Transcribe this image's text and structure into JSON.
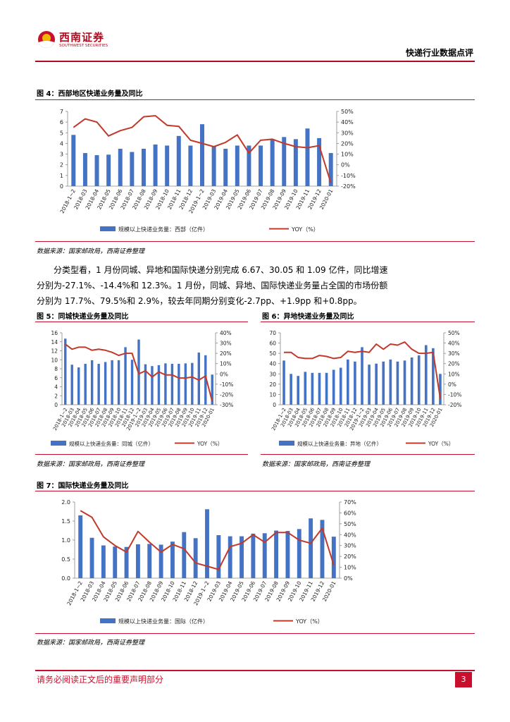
{
  "header": {
    "logo_cn": "西南证券",
    "logo_en": "SOUTHWEST SECURITIES",
    "title": "快递行业数据点评"
  },
  "categories_main": [
    "2018-1~2",
    "2018-03",
    "2018-04",
    "2018-05",
    "2018-06",
    "2018-07",
    "2018-08",
    "2018-09",
    "2018-10",
    "2018-11",
    "2018-12",
    "2019-1~2",
    "2019-03",
    "2019-04",
    "2019-05",
    "2019-06",
    "2019-07",
    "2019-08",
    "2019-09",
    "2019-10",
    "2019-11",
    "2019-12",
    "2020-01"
  ],
  "fig4": {
    "title": "图 4：西部地区快递业务量及同比",
    "source": "数据来源：国家邮政局，西南证券整理"
  },
  "fig5": {
    "title": "图 5：同城快递业务量及同比",
    "source": "数据来源：国家邮政局，西南证券整理"
  },
  "fig6": {
    "title": "图 6：异地快递业务量及同比",
    "source": "数据来源：国家邮政局，西南证券整理"
  },
  "fig7": {
    "title": "图 7：国际快递业务量及同比",
    "source": "数据来源：国家邮政局，西南证券整理"
  },
  "paragraph": {
    "lines": [
      "分类型看，1 月份同城、异地和国际快递分别完成 6.67、30.05 和 1.09 亿件，同比增速",
      "分别为-27.1%、-14.4%和 12.3%。1 月份，同城、异地、国际快递业务量占全国的市场份额",
      "分别为 17.7%、79.5%和 2.9%，较去年同期分别变化-2.7pp、+1.9pp 和+0.8pp。"
    ]
  },
  "footer": {
    "disclaimer": "请务必阅读正文后的重要声明部分",
    "page_number": "3"
  },
  "chart_data": [
    {
      "id": "fig4",
      "type": "bar+line",
      "title": "图 4：西部地区快递业务量及同比",
      "categories": [
        "2018-1~2",
        "2018-03",
        "2018-04",
        "2018-05",
        "2018-06",
        "2018-07",
        "2018-08",
        "2018-09",
        "2018-10",
        "2018-11",
        "2018-12",
        "2019-1~2",
        "2019-03",
        "2019-04",
        "2019-05",
        "2019-06",
        "2019-07",
        "2019-08",
        "2019-09",
        "2019-10",
        "2019-11",
        "2019-12",
        "2020-01"
      ],
      "series": [
        {
          "name": "规模以上快递业务量：西部（亿件）",
          "type": "bar",
          "axis": "left",
          "color": "#4472c4",
          "values": [
            4.8,
            3.1,
            2.9,
            2.95,
            3.5,
            3.2,
            3.5,
            3.9,
            3.8,
            4.7,
            3.8,
            5.8,
            3.7,
            3.5,
            3.8,
            3.8,
            3.8,
            4.4,
            4.6,
            4.4,
            5.4,
            4.5,
            3.1
          ]
        },
        {
          "name": "YOY（%）",
          "type": "line",
          "axis": "right",
          "color": "#c0392b",
          "values": [
            35,
            43,
            40,
            27,
            32,
            35,
            45,
            46,
            37,
            36,
            23,
            20,
            17,
            21,
            28,
            11,
            23,
            24,
            20,
            17,
            16,
            18,
            -17
          ]
        }
      ],
      "ylim_left": [
        0,
        7
      ],
      "yticks_left": [
        0,
        1,
        2,
        3,
        4,
        5,
        6,
        7
      ],
      "ylim_right": [
        -20,
        50
      ],
      "yticks_right": [
        "-20%",
        "-10%",
        "0%",
        "10%",
        "20%",
        "30%",
        "40%",
        "50%"
      ]
    },
    {
      "id": "fig5",
      "type": "bar+line",
      "title": "图 5：同城快递业务量及同比",
      "categories": [
        "2018-1~2",
        "2018-03",
        "2018-04",
        "2018-05",
        "2018-06",
        "2018-07",
        "2018-08",
        "2018-09",
        "2018-10",
        "2018-11",
        "2018-12",
        "2019-1~2",
        "2019-03",
        "2019-04",
        "2019-05",
        "2019-06",
        "2019-07",
        "2019-08",
        "2019-09",
        "2019-10",
        "2019-11",
        "2019-12",
        "2020-01"
      ],
      "series": [
        {
          "name": "规模以上快递业务量：同城（亿件）",
          "type": "bar",
          "axis": "left",
          "color": "#4472c4",
          "values": [
            14.7,
            8.9,
            8.3,
            9.1,
            9.9,
            9.1,
            9.5,
            9.9,
            9.9,
            12.8,
            10.0,
            14.5,
            9.0,
            8.6,
            8.8,
            9.2,
            9.1,
            9.1,
            9.2,
            9.3,
            11.6,
            11.0,
            6.7
          ]
        },
        {
          "name": "YOY（%）",
          "type": "line",
          "axis": "right",
          "color": "#c0392b",
          "values": [
            29,
            24,
            26,
            26,
            23,
            24,
            23,
            21,
            18,
            20,
            20,
            0,
            3,
            -3,
            2,
            -1,
            -1,
            -4,
            -4,
            -3,
            -6,
            -2,
            -27
          ]
        }
      ],
      "ylim_left": [
        0,
        16
      ],
      "yticks_left": [
        0,
        2,
        4,
        6,
        8,
        10,
        12,
        14,
        16
      ],
      "ylim_right": [
        -30,
        40
      ],
      "yticks_right": [
        "-30%",
        "-20%",
        "-10%",
        "0%",
        "10%",
        "20%",
        "30%",
        "40%"
      ]
    },
    {
      "id": "fig6",
      "type": "bar+line",
      "title": "图 6：异地快递业务量及同比",
      "categories": [
        "2018-1~2",
        "2018-03",
        "2018-04",
        "2018-05",
        "2018-06",
        "2018-07",
        "2018-08",
        "2018-09",
        "2018-10",
        "2018-11",
        "2018-12",
        "2019-1~2",
        "2019-03",
        "2019-04",
        "2019-05",
        "2019-06",
        "2019-07",
        "2019-08",
        "2019-09",
        "2019-10",
        "2019-11",
        "2019-12",
        "2020-01"
      ],
      "series": [
        {
          "name": "规模以上快递业务量：异地（亿件）",
          "type": "bar",
          "axis": "left",
          "color": "#4472c4",
          "values": [
            43,
            30,
            28,
            32,
            31,
            31,
            31,
            34,
            36,
            44,
            42,
            56,
            39,
            40,
            42,
            44,
            42,
            43,
            46,
            48,
            58,
            55,
            30
          ]
        },
        {
          "name": "YOY（%）",
          "type": "line",
          "axis": "right",
          "color": "#c0392b",
          "values": [
            31,
            31,
            26,
            25,
            25,
            28,
            27,
            25,
            26,
            32,
            31,
            32,
            31,
            39,
            34,
            39,
            38,
            41,
            34,
            30,
            30,
            31,
            -14
          ]
        }
      ],
      "ylim_left": [
        0,
        70
      ],
      "yticks_left": [
        0,
        10,
        20,
        30,
        40,
        50,
        60,
        70
      ],
      "ylim_right": [
        -20,
        50
      ],
      "yticks_right": [
        "-20%",
        "-10%",
        "0%",
        "10%",
        "20%",
        "30%",
        "40%",
        "50%"
      ]
    },
    {
      "id": "fig7",
      "type": "bar+line",
      "title": "图 7：国际快递业务量及同比",
      "categories": [
        "2018-1~2",
        "2018-03",
        "2018-04",
        "2018-05",
        "2018-06",
        "2018-07",
        "2018-08",
        "2018-09",
        "2018-10",
        "2018-11",
        "2018-12",
        "2019-1~2",
        "2019-03",
        "2019-04",
        "2019-05",
        "2019-06",
        "2019-07",
        "2019-08",
        "2019-09",
        "2019-10",
        "2019-11",
        "2019-12",
        "2020-01"
      ],
      "series": [
        {
          "name": "规模以上快递业务量：国际（亿件）",
          "type": "bar",
          "axis": "left",
          "color": "#4472c4",
          "values": [
            1.65,
            1.06,
            0.86,
            0.83,
            0.82,
            0.89,
            0.9,
            0.88,
            0.96,
            1.21,
            1.05,
            1.81,
            1.13,
            1.1,
            1.1,
            1.17,
            1.18,
            1.25,
            1.24,
            1.29,
            1.57,
            1.53,
            1.09
          ]
        },
        {
          "name": "YOY（%）",
          "type": "line",
          "axis": "right",
          "color": "#c0392b",
          "values": [
            62,
            56,
            38,
            30,
            24,
            43,
            33,
            24,
            31,
            27,
            14,
            11,
            8,
            29,
            32,
            40,
            33,
            42,
            42,
            35,
            32,
            46,
            12
          ]
        }
      ],
      "ylim_left": [
        0,
        2.0
      ],
      "yticks_left": [
        "0.0",
        "0.5",
        "1.0",
        "1.5",
        "2.0"
      ],
      "ylim_right": [
        0,
        70
      ],
      "yticks_right": [
        "0%",
        "10%",
        "20%",
        "30%",
        "40%",
        "50%",
        "60%",
        "70%"
      ]
    }
  ]
}
